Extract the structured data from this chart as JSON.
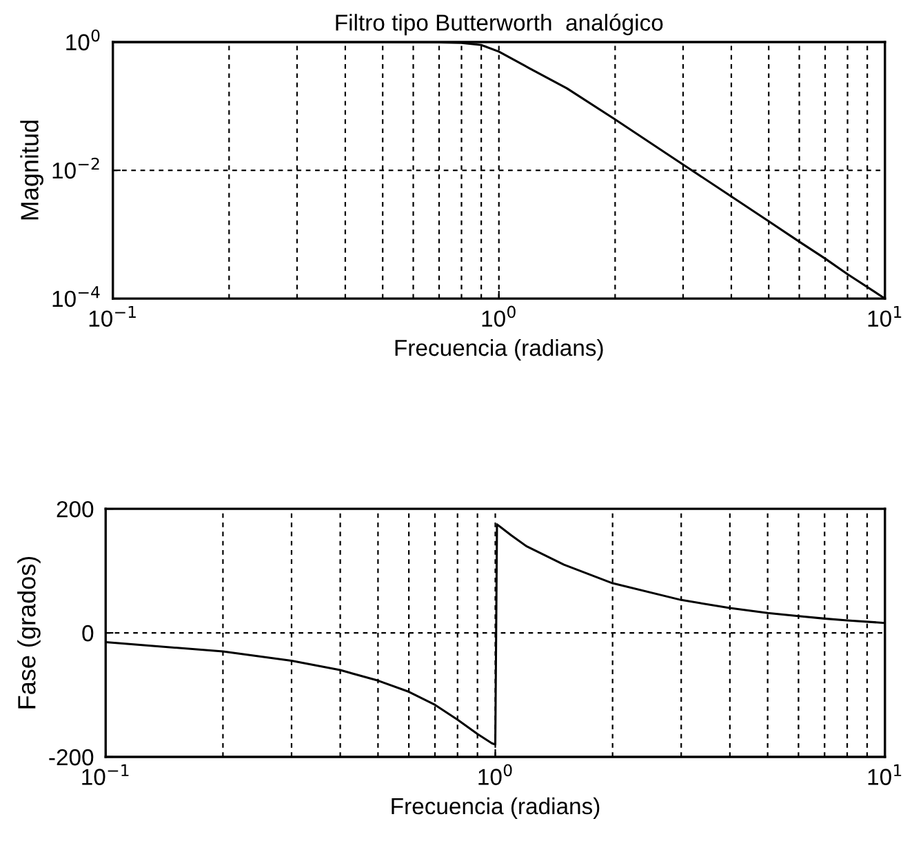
{
  "chart_data": [
    {
      "type": "line",
      "title": "Filtro tipo Butterworth  analógico",
      "xlabel": "Frecuencia (radians)",
      "ylabel": "Magnitud",
      "log": "xy",
      "xlim": [
        0.1,
        10
      ],
      "xticks": [
        {
          "value": 0.1,
          "label": "10$^{−1}$"
        },
        {
          "value": 1,
          "label": "10$^{0}$"
        },
        {
          "value": 10,
          "label": "10$^{1}$"
        }
      ],
      "ylim": [
        0.0001,
        1
      ],
      "yticks": [
        {
          "value": 0.0001,
          "label": "10$^{−4}$"
        },
        {
          "value": 0.01,
          "label": "10$^{−2}$"
        },
        {
          "value": 1,
          "label": "10$^{0}$"
        }
      ],
      "grid": true,
      "line_style": "solid",
      "marker": "none",
      "series": [
        {
          "color": "#000000",
          "x": [
            0.1,
            0.2,
            0.3,
            0.5,
            0.7,
            0.8,
            0.9,
            1.0,
            1.2,
            1.5,
            2,
            3,
            4,
            5,
            6,
            7,
            8,
            10
          ],
          "values": [
            1,
            1,
            1,
            1,
            0.99,
            0.97,
            0.9,
            0.71,
            0.39,
            0.19,
            0.062,
            0.0123,
            0.0039,
            0.0016,
            0.00077,
            0.00042,
            0.00024,
            0.0001
          ]
        }
      ]
    },
    {
      "type": "line",
      "xlabel": "Frecuencia (radians)",
      "ylabel": "Fase (grados)",
      "log": "x",
      "xlim": [
        0.1,
        10
      ],
      "xticks": [
        {
          "value": 0.1,
          "label": "10$^{−1}$"
        },
        {
          "value": 1,
          "label": "10$^{0}$"
        },
        {
          "value": 10,
          "label": "10$^{1}$"
        }
      ],
      "ylim": [
        -200,
        200
      ],
      "yticks": [
        -200,
        0,
        200
      ],
      "grid": true,
      "line_style": "solid",
      "marker": "none",
      "series": [
        {
          "color": "#000000",
          "x": [
            0.1,
            0.2,
            0.3,
            0.4,
            0.5,
            0.6,
            0.7,
            0.8,
            0.9,
            0.98,
            1.0,
            1.01,
            1.1,
            1.2,
            1.5,
            2,
            3,
            4,
            5,
            6,
            7,
            8,
            10
          ],
          "values": [
            -15,
            -30,
            -45,
            -60,
            -77,
            -95,
            -116,
            -140,
            -163,
            -178,
            -180,
            175,
            157,
            140,
            110,
            80,
            53,
            40,
            32,
            27,
            23,
            20,
            16
          ]
        }
      ]
    }
  ]
}
